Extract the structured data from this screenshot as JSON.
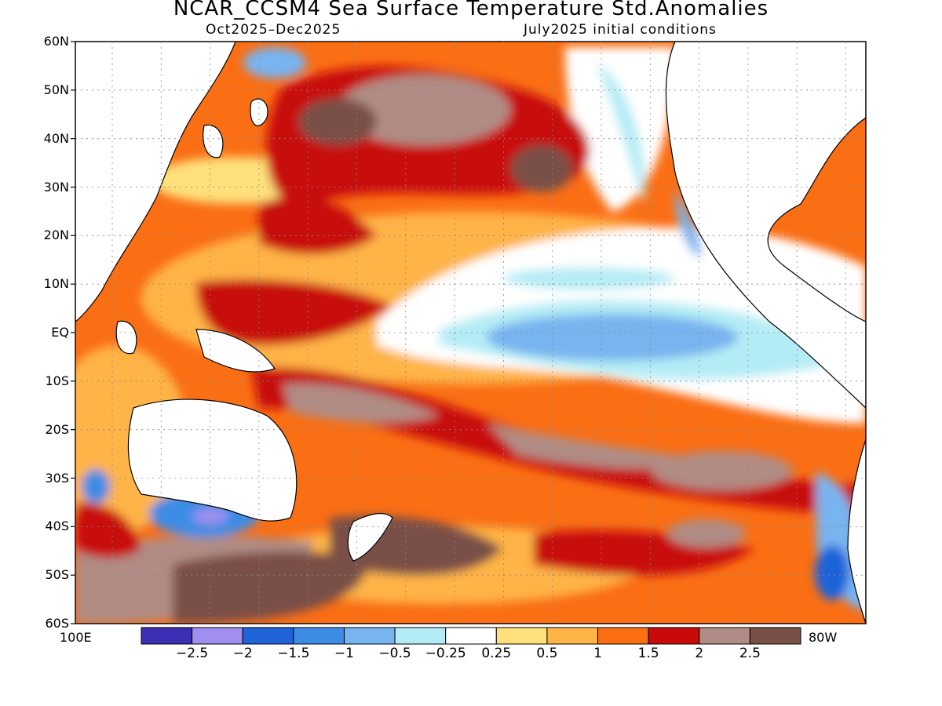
{
  "title": "NCAR_CCSM4 Sea Surface Temperature Std.Anomalies",
  "subtitle_left": "Oct2025–Dec2025",
  "subtitle_right": "July2025 initial conditions",
  "lat_labels": [
    "60N",
    "50N",
    "40N",
    "30N",
    "20N",
    "10N",
    "EQ",
    "10S",
    "20S",
    "30S",
    "40S",
    "50S",
    "60S"
  ],
  "lon_left_label": "100E",
  "lon_right_label": "80W",
  "colorbar": {
    "colors": [
      "#3c2fb3",
      "#a08ff0",
      "#1f64d9",
      "#3d8ce6",
      "#78b4f0",
      "#b4ecf5",
      "#ffffff",
      "#ffe07a",
      "#ffb446",
      "#fa6e14",
      "#c80a0a",
      "#b08c84",
      "#7a5046"
    ],
    "tick_labels": [
      "−2.5",
      "−2",
      "−1.5",
      "−1",
      "−0.5",
      "−0.25",
      "0.25",
      "0.5",
      "1",
      "1.5",
      "2",
      "2.5"
    ],
    "tick_values": [
      -2.5,
      -2,
      -1.5,
      -1,
      -0.5,
      -0.25,
      0.25,
      0.5,
      1,
      1.5,
      2,
      2.5
    ]
  }
}
